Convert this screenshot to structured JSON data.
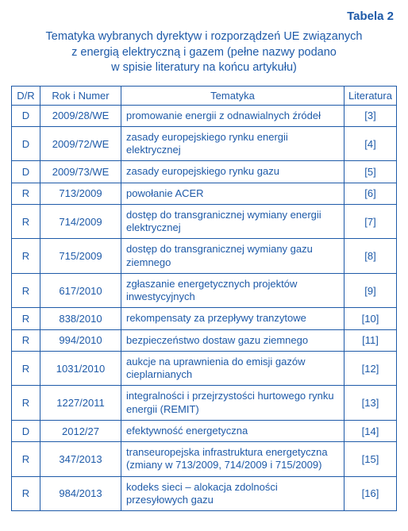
{
  "colors": {
    "text": "#1e5aa8",
    "border": "#1e5aa8"
  },
  "table_label": "Tabela 2",
  "caption_lines": [
    "Tematyka wybranych dyrektyw i rozporządzeń UE związanych",
    "z energią elektryczną i gazem (pełne nazwy podano",
    "w spisie literatury na końcu artykułu)"
  ],
  "headers": {
    "dr": "D/R",
    "num": "Rok i Numer",
    "topic": "Tematyka",
    "lit": "Literatura"
  },
  "rows": [
    {
      "dr": "D",
      "num": "2009/28/WE",
      "topic": "promowanie energii z odnawialnych źródeł",
      "lit": "[3]"
    },
    {
      "dr": "D",
      "num": "2009/72/WE",
      "topic": "zasady europejskiego rynku energii elektrycznej",
      "lit": "[4]"
    },
    {
      "dr": "D",
      "num": "2009/73/WE",
      "topic": "zasady europejskiego rynku gazu",
      "lit": "[5]"
    },
    {
      "dr": "R",
      "num": "713/2009",
      "topic": "powołanie ACER",
      "lit": "[6]"
    },
    {
      "dr": "R",
      "num": "714/2009",
      "topic": "dostęp do transgranicznej wymiany energii elektrycznej",
      "lit": "[7]"
    },
    {
      "dr": "R",
      "num": "715/2009",
      "topic": "dostęp do transgranicznej wymiany gazu ziemnego",
      "lit": "[8]"
    },
    {
      "dr": "R",
      "num": "617/2010",
      "topic": "zgłaszanie energetycznych projektów inwestycyjnych",
      "lit": "[9]"
    },
    {
      "dr": "R",
      "num": "838/2010",
      "topic": "rekompensaty za przepływy tranzytowe",
      "lit": "[10]"
    },
    {
      "dr": "R",
      "num": "994/2010",
      "topic": "bezpieczeństwo dostaw gazu ziemnego",
      "lit": "[11]"
    },
    {
      "dr": "R",
      "num": "1031/2010",
      "topic": "aukcje na uprawnienia do emisji gazów cieplarnianych",
      "lit": "[12]"
    },
    {
      "dr": "R",
      "num": "1227/2011",
      "topic": "integralności i przejrzystości hurtowego rynku energii (REMIT)",
      "lit": "[13]"
    },
    {
      "dr": "D",
      "num": "2012/27",
      "topic": "efektywność energetyczna",
      "lit": "[14]"
    },
    {
      "dr": "R",
      "num": "347/2013",
      "topic": "transeuropejska infrastruktura energetyczna (zmiany w 713/2009, 714/2009 i 715/2009)",
      "lit": "[15]"
    },
    {
      "dr": "R",
      "num": "984/2013",
      "topic": "kodeks sieci – alokacja zdolności przesyłowych gazu",
      "lit": "[16]"
    }
  ]
}
